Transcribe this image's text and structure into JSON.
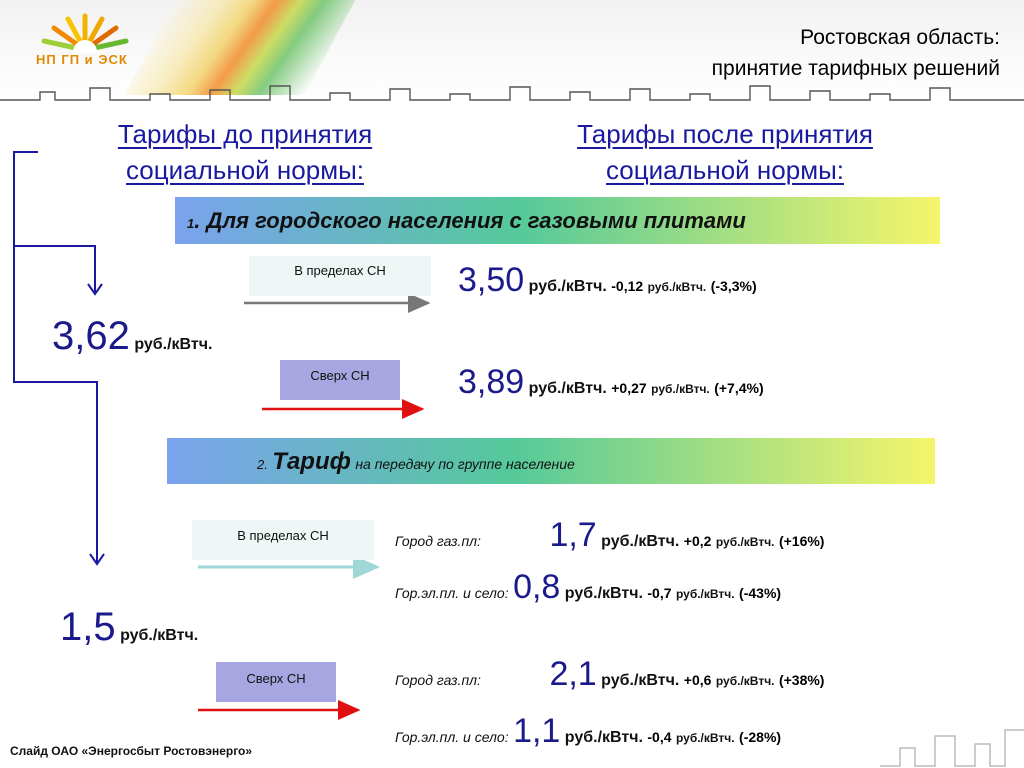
{
  "logo": {
    "text": "НП ГП и ЭСК"
  },
  "header": {
    "line1": "Ростовская область:",
    "line2": "принятие тарифных решений"
  },
  "heading_before": {
    "line1": "Тарифы до принятия",
    "line2": "социальной нормы:"
  },
  "heading_after": {
    "line1": "Тарифы после принятия",
    "line2": "социальной нормы:"
  },
  "section1": {
    "num": "1",
    "text": ". Для городского населения с газовыми плитами"
  },
  "section2": {
    "num": "2.",
    "bold": "Тариф",
    "rest": "на передачу по группе население"
  },
  "old_tariff1": {
    "value": "3,62",
    "unit": "руб./кВтч."
  },
  "old_tariff2": {
    "value": "1,5",
    "unit": "руб./кВтч."
  },
  "s1_within": {
    "badge": "В пределах СН",
    "value": "3,50",
    "unit": "руб./кВтч.",
    "diff": "-0,12",
    "diff_unit": "руб./кВтч.",
    "pct": "(-3,3%)"
  },
  "s1_above": {
    "badge": "Сверх СН",
    "value": "3,89",
    "unit": "руб./кВтч.",
    "diff": "+0,27",
    "diff_unit": "руб./кВтч.",
    "pct": "(+7,4%)"
  },
  "s2_within": {
    "badge": "В пределах СН",
    "rows": [
      {
        "label": "Город газ.пл:",
        "value": "1,7",
        "unit": "руб./кВтч.",
        "diff": "+0,2",
        "diff_unit": "руб./кВтч.",
        "pct": "(+16%)"
      },
      {
        "label": "Гор.эл.пл. и село:",
        "value": "0,8",
        "unit": "руб./кВтч.",
        "diff": "-0,7",
        "diff_unit": "руб./кВтч.",
        "pct": "(-43%)"
      }
    ]
  },
  "s2_above": {
    "badge": "Сверх СН",
    "rows": [
      {
        "label": "Город газ.пл:",
        "value": "2,1",
        "unit": "руб./кВтч.",
        "diff": "+0,6",
        "diff_unit": "руб./кВтч.",
        "pct": "(+38%)"
      },
      {
        "label": "Гор.эл.пл. и село:",
        "value": "1,1",
        "unit": "руб./кВтч.",
        "diff": "-0,4",
        "diff_unit": "руб./кВтч.",
        "pct": "(-28%)"
      }
    ]
  },
  "footer": {
    "text": "Слайд ОАО «Энергосбыт Ростовэнерго»"
  },
  "colors": {
    "heading_blue": "#1a1aa0",
    "number_blue": "#1a1a8a",
    "arrow_blue": "#1a1aa0",
    "arrow_red": "#e01010",
    "arrow_gray": "#777777",
    "badge_light": "#eef6f6",
    "badge_purple": "#a8a6e0",
    "band_gradient": [
      "#7aa2ee",
      "#55c99a",
      "#f5f56a"
    ]
  },
  "icons": {
    "logo": "sun-logo-icon",
    "skyline": "city-skyline-icon"
  }
}
